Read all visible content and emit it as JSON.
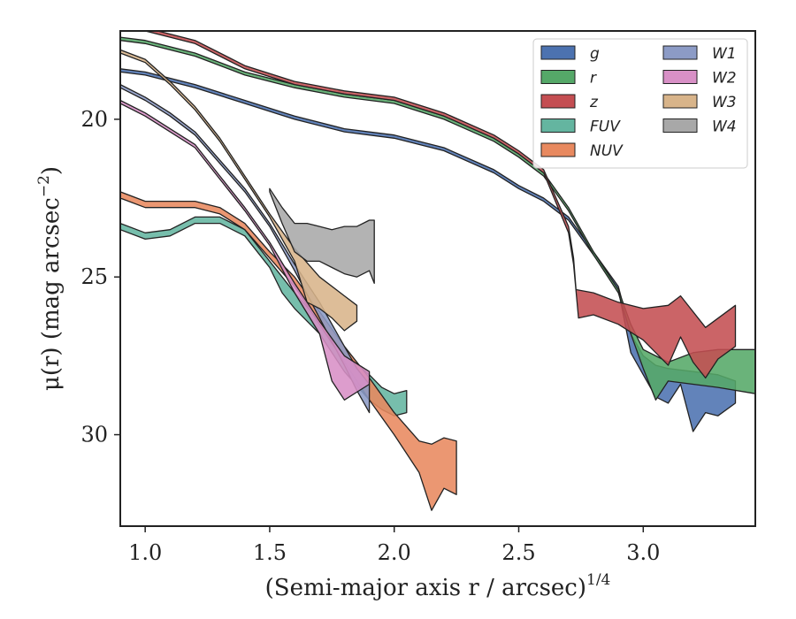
{
  "chart_data": {
    "type": "area",
    "title": "",
    "xlabel": "(Semi-major axis r / arcsec)",
    "xlabel_sup": "1/4",
    "ylabel": "μ(r) (mag arcsec",
    "ylabel_sup": "−2",
    "ylabel_tail": ")",
    "xlim": [
      0.9,
      3.45
    ],
    "ylim": [
      17.2,
      32.9
    ],
    "y_inverted": true,
    "xticks": [
      1.0,
      1.5,
      2.0,
      2.5,
      3.0
    ],
    "xtick_labels": [
      "1.0",
      "1.5",
      "2.0",
      "2.5",
      "3.0"
    ],
    "yticks": [
      20,
      25,
      30
    ],
    "ytick_labels": [
      "20",
      "25",
      "30"
    ],
    "grid": false,
    "legend": {
      "placement": "top-right",
      "columns": 2
    },
    "series": [
      {
        "name": "g",
        "color": "#4c72b0",
        "upper": [
          [
            0.9,
            18.4
          ],
          [
            1.0,
            18.5
          ],
          [
            1.2,
            18.9
          ],
          [
            1.4,
            19.4
          ],
          [
            1.6,
            19.9
          ],
          [
            1.8,
            20.3
          ],
          [
            2.0,
            20.5
          ],
          [
            2.2,
            20.9
          ],
          [
            2.4,
            21.6
          ],
          [
            2.5,
            22.1
          ],
          [
            2.6,
            22.5
          ],
          [
            2.7,
            23.1
          ],
          [
            2.8,
            24.2
          ],
          [
            2.9,
            25.3
          ],
          [
            2.95,
            26.8
          ],
          [
            3.0,
            27.5
          ],
          [
            3.05,
            27.8
          ],
          [
            3.1,
            27.9
          ],
          [
            3.2,
            28.0
          ],
          [
            3.3,
            28.1
          ],
          [
            3.37,
            28.3
          ]
        ],
        "lower": [
          [
            0.9,
            18.5
          ],
          [
            1.0,
            18.6
          ],
          [
            1.2,
            19.0
          ],
          [
            1.4,
            19.5
          ],
          [
            1.6,
            20.0
          ],
          [
            1.8,
            20.4
          ],
          [
            2.0,
            20.6
          ],
          [
            2.2,
            21.0
          ],
          [
            2.4,
            21.7
          ],
          [
            2.5,
            22.2
          ],
          [
            2.6,
            22.6
          ],
          [
            2.7,
            23.2
          ],
          [
            2.8,
            24.3
          ],
          [
            2.9,
            25.4
          ],
          [
            2.95,
            27.4
          ],
          [
            3.0,
            28.1
          ],
          [
            3.05,
            28.8
          ],
          [
            3.1,
            29.0
          ],
          [
            3.15,
            28.4
          ],
          [
            3.2,
            29.9
          ],
          [
            3.25,
            29.3
          ],
          [
            3.3,
            29.4
          ],
          [
            3.37,
            29.0
          ]
        ]
      },
      {
        "name": "r",
        "color": "#55a868",
        "upper": [
          [
            0.9,
            17.4
          ],
          [
            1.0,
            17.5
          ],
          [
            1.2,
            17.9
          ],
          [
            1.4,
            18.5
          ],
          [
            1.6,
            18.9
          ],
          [
            1.8,
            19.2
          ],
          [
            2.0,
            19.4
          ],
          [
            2.2,
            19.9
          ],
          [
            2.4,
            20.6
          ],
          [
            2.5,
            21.1
          ],
          [
            2.6,
            21.7
          ],
          [
            2.7,
            22.8
          ],
          [
            2.8,
            24.2
          ],
          [
            2.9,
            25.4
          ],
          [
            2.95,
            26.5
          ],
          [
            3.0,
            27.3
          ],
          [
            3.1,
            27.7
          ],
          [
            3.2,
            27.4
          ],
          [
            3.3,
            27.3
          ],
          [
            3.45,
            27.3
          ]
        ],
        "lower": [
          [
            0.9,
            17.5
          ],
          [
            1.0,
            17.6
          ],
          [
            1.2,
            18.0
          ],
          [
            1.4,
            18.6
          ],
          [
            1.6,
            19.0
          ],
          [
            1.8,
            19.3
          ],
          [
            2.0,
            19.5
          ],
          [
            2.2,
            20.0
          ],
          [
            2.4,
            20.7
          ],
          [
            2.5,
            21.2
          ],
          [
            2.6,
            21.8
          ],
          [
            2.7,
            22.9
          ],
          [
            2.8,
            24.3
          ],
          [
            2.9,
            25.5
          ],
          [
            2.95,
            26.8
          ],
          [
            3.0,
            27.9
          ],
          [
            3.05,
            28.9
          ],
          [
            3.1,
            28.3
          ],
          [
            3.2,
            28.4
          ],
          [
            3.3,
            28.5
          ],
          [
            3.45,
            28.7
          ]
        ]
      },
      {
        "name": "z",
        "color": "#c44e52",
        "upper": [
          [
            0.9,
            17.0
          ],
          [
            1.0,
            17.1
          ],
          [
            1.2,
            17.5
          ],
          [
            1.4,
            18.3
          ],
          [
            1.6,
            18.8
          ],
          [
            1.8,
            19.1
          ],
          [
            2.0,
            19.3
          ],
          [
            2.2,
            19.8
          ],
          [
            2.4,
            20.5
          ],
          [
            2.5,
            21.0
          ],
          [
            2.6,
            21.6
          ],
          [
            2.7,
            23.4
          ],
          [
            2.72,
            24.4
          ],
          [
            2.73,
            25.4
          ],
          [
            2.8,
            25.5
          ],
          [
            2.9,
            25.8
          ],
          [
            3.0,
            26.0
          ],
          [
            3.1,
            25.9
          ],
          [
            3.15,
            25.6
          ],
          [
            3.25,
            26.6
          ],
          [
            3.37,
            25.9
          ]
        ],
        "lower": [
          [
            0.9,
            17.1
          ],
          [
            1.0,
            17.2
          ],
          [
            1.2,
            17.6
          ],
          [
            1.4,
            18.4
          ],
          [
            1.6,
            18.9
          ],
          [
            1.8,
            19.2
          ],
          [
            2.0,
            19.4
          ],
          [
            2.2,
            19.9
          ],
          [
            2.4,
            20.6
          ],
          [
            2.5,
            21.1
          ],
          [
            2.6,
            21.7
          ],
          [
            2.7,
            23.6
          ],
          [
            2.72,
            24.6
          ],
          [
            2.74,
            26.3
          ],
          [
            2.8,
            26.2
          ],
          [
            2.9,
            26.5
          ],
          [
            3.0,
            27.0
          ],
          [
            3.1,
            27.8
          ],
          [
            3.15,
            26.9
          ],
          [
            3.2,
            27.7
          ],
          [
            3.25,
            28.2
          ],
          [
            3.3,
            27.6
          ],
          [
            3.37,
            27.2
          ]
        ]
      },
      {
        "name": "FUV",
        "color": "#64b5a0",
        "upper": [
          [
            0.9,
            23.3
          ],
          [
            1.0,
            23.6
          ],
          [
            1.1,
            23.5
          ],
          [
            1.2,
            23.1
          ],
          [
            1.3,
            23.1
          ],
          [
            1.4,
            23.5
          ],
          [
            1.5,
            24.5
          ],
          [
            1.55,
            25.0
          ],
          [
            1.6,
            25.5
          ],
          [
            1.7,
            26.4
          ],
          [
            1.8,
            27.4
          ],
          [
            1.9,
            28.1
          ],
          [
            1.95,
            28.5
          ],
          [
            2.0,
            28.7
          ],
          [
            2.05,
            28.6
          ]
        ],
        "lower": [
          [
            0.9,
            23.5
          ],
          [
            1.0,
            23.8
          ],
          [
            1.1,
            23.7
          ],
          [
            1.2,
            23.3
          ],
          [
            1.3,
            23.3
          ],
          [
            1.4,
            23.7
          ],
          [
            1.5,
            24.7
          ],
          [
            1.55,
            25.5
          ],
          [
            1.6,
            26.0
          ],
          [
            1.7,
            26.8
          ],
          [
            1.8,
            28.0
          ],
          [
            1.9,
            28.9
          ],
          [
            1.95,
            29.2
          ],
          [
            2.0,
            29.4
          ],
          [
            2.05,
            29.3
          ]
        ]
      },
      {
        "name": "NUV",
        "color": "#e8895f",
        "upper": [
          [
            0.9,
            22.3
          ],
          [
            1.0,
            22.6
          ],
          [
            1.1,
            22.6
          ],
          [
            1.2,
            22.6
          ],
          [
            1.3,
            22.8
          ],
          [
            1.4,
            23.3
          ],
          [
            1.5,
            24.2
          ],
          [
            1.6,
            25.0
          ],
          [
            1.7,
            26.1
          ],
          [
            1.8,
            27.2
          ],
          [
            1.9,
            28.2
          ],
          [
            2.0,
            29.3
          ],
          [
            2.1,
            30.2
          ],
          [
            2.15,
            30.3
          ],
          [
            2.2,
            30.1
          ],
          [
            2.25,
            30.2
          ]
        ],
        "lower": [
          [
            0.9,
            22.5
          ],
          [
            1.0,
            22.8
          ],
          [
            1.1,
            22.8
          ],
          [
            1.2,
            22.8
          ],
          [
            1.3,
            23.0
          ],
          [
            1.4,
            23.5
          ],
          [
            1.5,
            24.4
          ],
          [
            1.6,
            25.3
          ],
          [
            1.7,
            26.5
          ],
          [
            1.8,
            27.7
          ],
          [
            1.9,
            28.9
          ],
          [
            2.0,
            30.0
          ],
          [
            2.1,
            31.2
          ],
          [
            2.15,
            32.4
          ],
          [
            2.2,
            31.7
          ],
          [
            2.25,
            31.9
          ]
        ]
      },
      {
        "name": "W1",
        "color": "#8c9bc6",
        "upper": [
          [
            0.9,
            18.9
          ],
          [
            1.0,
            19.3
          ],
          [
            1.1,
            19.8
          ],
          [
            1.2,
            20.4
          ],
          [
            1.3,
            21.3
          ],
          [
            1.4,
            22.2
          ],
          [
            1.5,
            23.3
          ],
          [
            1.6,
            24.6
          ],
          [
            1.7,
            25.8
          ],
          [
            1.8,
            27.2
          ],
          [
            1.85,
            27.9
          ],
          [
            1.9,
            28.4
          ]
        ],
        "lower": [
          [
            0.9,
            19.0
          ],
          [
            1.0,
            19.4
          ],
          [
            1.1,
            19.9
          ],
          [
            1.2,
            20.5
          ],
          [
            1.3,
            21.4
          ],
          [
            1.4,
            22.3
          ],
          [
            1.5,
            23.4
          ],
          [
            1.6,
            24.8
          ],
          [
            1.7,
            26.3
          ],
          [
            1.8,
            27.8
          ],
          [
            1.85,
            28.6
          ],
          [
            1.9,
            29.3
          ]
        ]
      },
      {
        "name": "W2",
        "color": "#d890c6",
        "upper": [
          [
            0.9,
            19.4
          ],
          [
            1.0,
            19.8
          ],
          [
            1.1,
            20.3
          ],
          [
            1.2,
            20.8
          ],
          [
            1.3,
            21.8
          ],
          [
            1.4,
            22.8
          ],
          [
            1.5,
            23.9
          ],
          [
            1.6,
            25.2
          ],
          [
            1.7,
            26.4
          ],
          [
            1.8,
            27.5
          ],
          [
            1.9,
            28.0
          ]
        ],
        "lower": [
          [
            0.9,
            19.5
          ],
          [
            1.0,
            19.9
          ],
          [
            1.1,
            20.4
          ],
          [
            1.2,
            20.9
          ],
          [
            1.3,
            21.9
          ],
          [
            1.4,
            22.9
          ],
          [
            1.5,
            24.0
          ],
          [
            1.6,
            25.5
          ],
          [
            1.7,
            26.8
          ],
          [
            1.75,
            28.3
          ],
          [
            1.8,
            28.9
          ],
          [
            1.9,
            28.4
          ]
        ]
      },
      {
        "name": "W3",
        "color": "#d8b48a",
        "upper": [
          [
            0.9,
            17.8
          ],
          [
            1.0,
            18.1
          ],
          [
            1.1,
            18.8
          ],
          [
            1.2,
            19.6
          ],
          [
            1.3,
            20.6
          ],
          [
            1.4,
            21.8
          ],
          [
            1.5,
            23.0
          ],
          [
            1.6,
            24.1
          ],
          [
            1.7,
            25.0
          ],
          [
            1.8,
            25.6
          ],
          [
            1.85,
            25.9
          ]
        ],
        "lower": [
          [
            0.9,
            17.9
          ],
          [
            1.0,
            18.2
          ],
          [
            1.1,
            18.9
          ],
          [
            1.2,
            19.7
          ],
          [
            1.3,
            20.7
          ],
          [
            1.4,
            21.9
          ],
          [
            1.5,
            23.1
          ],
          [
            1.6,
            24.5
          ],
          [
            1.65,
            25.8
          ],
          [
            1.7,
            26.0
          ],
          [
            1.75,
            26.3
          ],
          [
            1.8,
            26.7
          ],
          [
            1.85,
            26.4
          ]
        ]
      },
      {
        "name": "W4",
        "color": "#a8a8a8",
        "upper": [
          [
            1.5,
            22.2
          ],
          [
            1.55,
            22.8
          ],
          [
            1.6,
            23.3
          ],
          [
            1.65,
            23.3
          ],
          [
            1.7,
            23.4
          ],
          [
            1.75,
            23.5
          ],
          [
            1.8,
            23.4
          ],
          [
            1.85,
            23.4
          ],
          [
            1.9,
            23.2
          ],
          [
            1.92,
            23.2
          ]
        ],
        "lower": [
          [
            1.5,
            22.3
          ],
          [
            1.55,
            23.3
          ],
          [
            1.6,
            24.2
          ],
          [
            1.65,
            24.5
          ],
          [
            1.7,
            24.5
          ],
          [
            1.75,
            24.7
          ],
          [
            1.8,
            24.9
          ],
          [
            1.85,
            25.0
          ],
          [
            1.9,
            24.8
          ],
          [
            1.92,
            25.2
          ]
        ]
      }
    ]
  }
}
